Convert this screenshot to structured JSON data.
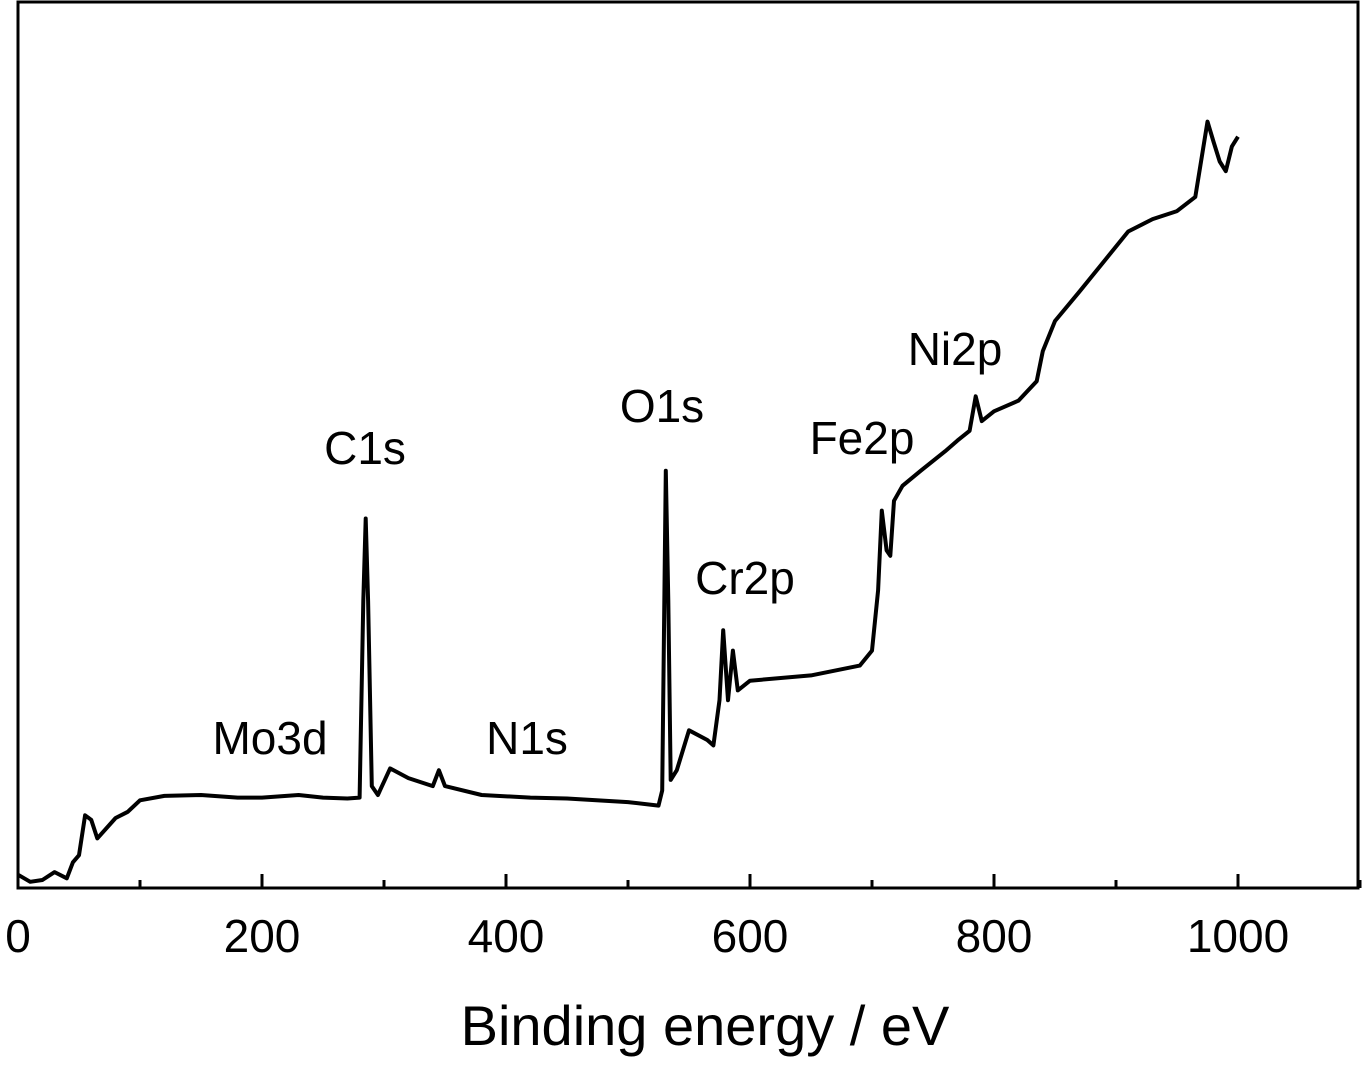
{
  "chart_data": {
    "type": "line",
    "x_label": "Binding energy / eV",
    "xlim": [
      0,
      1100
    ],
    "xticks": [
      0,
      200,
      400,
      600,
      800,
      1000
    ],
    "xminor_ticks": [
      100,
      300,
      500,
      700,
      900,
      1100
    ],
    "ylim": [
      0,
      100
    ],
    "annotations": [
      "Mo3d",
      "C1s",
      "N1s",
      "O1s",
      "Cr2p",
      "Fe2p",
      "Ni2p"
    ],
    "series": [
      {
        "color": "#000000",
        "x": [
          0,
          10,
          20,
          30,
          40,
          45,
          50,
          55,
          60,
          65,
          80,
          90,
          100,
          120,
          150,
          180,
          200,
          230,
          250,
          270,
          280,
          283,
          285,
          287,
          290,
          295,
          305,
          320,
          340,
          345,
          350,
          380,
          420,
          450,
          500,
          525,
          528,
          531,
          533,
          535,
          540,
          550,
          565,
          570,
          575,
          578,
          582,
          586,
          590,
          600,
          650,
          690,
          700,
          705,
          708,
          712,
          715,
          718,
          725,
          740,
          760,
          770,
          780,
          785,
          790,
          800,
          820,
          835,
          840,
          850,
          870,
          890,
          910,
          930,
          950,
          965,
          975,
          980,
          985,
          990,
          995,
          1000
        ],
        "values": [
          1.5,
          0.7,
          0.9,
          1.8,
          1.1,
          2.9,
          3.7,
          8.2,
          7.7,
          5.6,
          7.9,
          8.6,
          9.9,
          10.4,
          10.5,
          10.2,
          10.2,
          10.5,
          10.2,
          10.1,
          10.2,
          32.4,
          41.7,
          32.4,
          11.5,
          10.5,
          13.5,
          12.4,
          11.5,
          13.3,
          11.5,
          10.5,
          10.2,
          10.1,
          9.7,
          9.3,
          11.0,
          47.1,
          32.4,
          12.2,
          13.3,
          17.8,
          16.7,
          16.1,
          21.2,
          29.1,
          21.2,
          26.8,
          22.3,
          23.4,
          24.0,
          25.1,
          26.8,
          33.6,
          42.6,
          38.1,
          37.5,
          43.7,
          45.4,
          47.1,
          49.3,
          50.5,
          51.6,
          55.5,
          52.7,
          53.8,
          55.0,
          57.2,
          60.6,
          64.0,
          67.3,
          70.7,
          74.1,
          75.5,
          76.4,
          78.0,
          86.5,
          84.2,
          82.0,
          80.9,
          83.7,
          84.8
        ]
      }
    ]
  }
}
